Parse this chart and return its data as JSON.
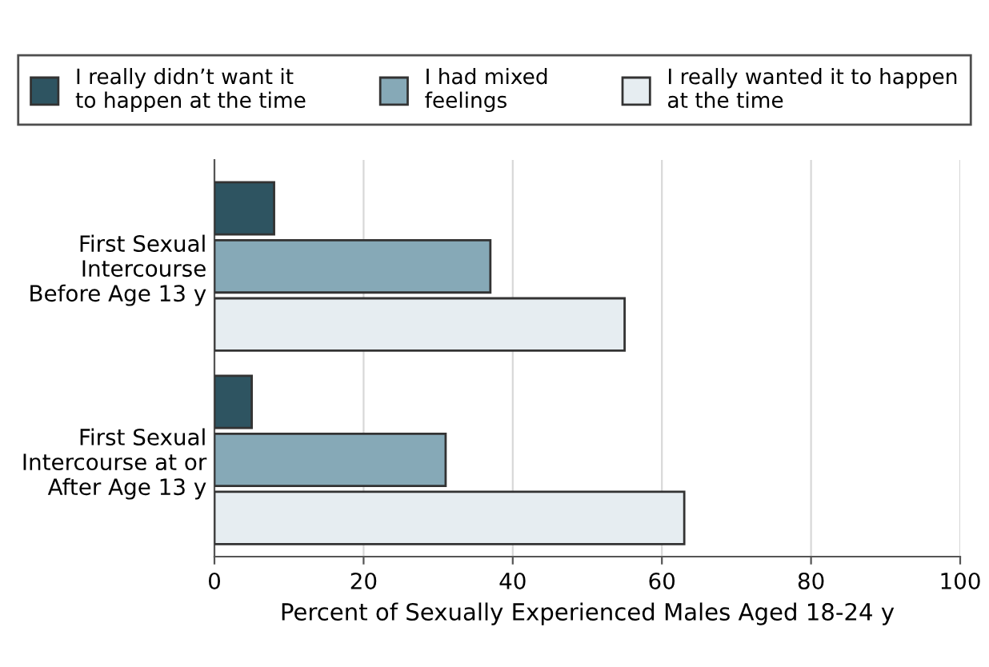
{
  "chart_data": {
    "type": "bar",
    "orientation": "horizontal",
    "xlabel": "Percent of Sexually Experienced Males Aged 18-24 y",
    "categories": [
      "First Sexual\nIntercourse\nBefore Age 13 y",
      "First Sexual\nIntercourse at or\nAfter Age 13 y"
    ],
    "series": [
      {
        "name": "I really didn’t want it\nto happen at the time",
        "color": "#2e5461",
        "values": [
          8,
          5
        ]
      },
      {
        "name": "I had mixed\nfeelings",
        "color": "#86a9b7",
        "values": [
          37,
          31
        ]
      },
      {
        "name": "I really wanted it to happen\nat the time",
        "color": "#e6edf1",
        "values": [
          55,
          63
        ]
      }
    ],
    "xlim": [
      0,
      100
    ],
    "xticks": [
      0,
      20,
      40,
      60,
      80,
      100
    ],
    "grid": "x",
    "legend": "top"
  }
}
